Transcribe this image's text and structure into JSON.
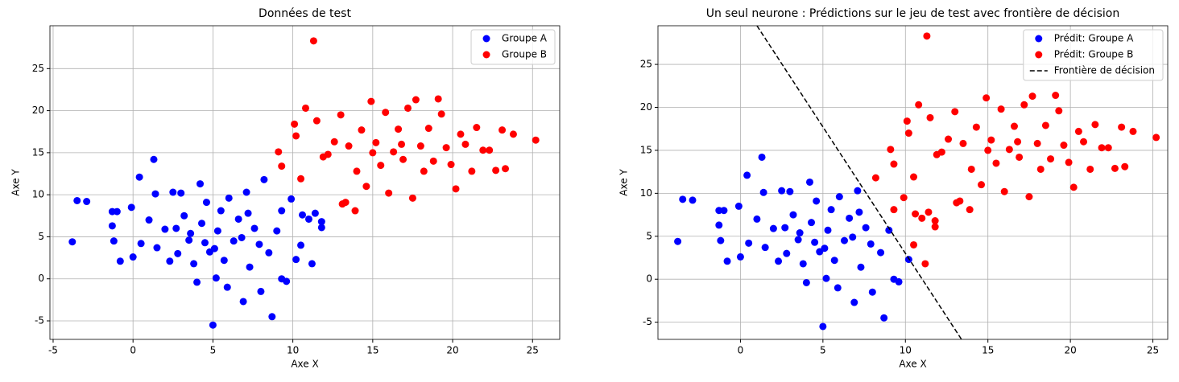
{
  "chart_data": [
    {
      "type": "scatter",
      "title": "Données de test",
      "x_label": "Axe X",
      "y_label": "Axe Y",
      "xlim": [
        -5.2,
        26.7
      ],
      "ylim": [
        -7.2,
        30.1
      ],
      "xticks": [
        -5,
        0,
        5,
        10,
        15,
        20,
        25
      ],
      "yticks": [
        -5,
        0,
        5,
        10,
        15,
        20,
        25
      ],
      "grid": true,
      "legend": "upper right",
      "series": [
        {
          "name": "Groupe A",
          "color": "#0000ff",
          "x": [
            -3.8,
            -3.5,
            -2.9,
            -1.3,
            -1.0,
            -1.3,
            -1.2,
            -0.8,
            -0.1,
            0,
            0.4,
            0.5,
            1.0,
            1.3,
            1.4,
            1.5,
            2.0,
            2.3,
            2.5,
            2.8,
            3.0,
            3.2,
            3.5,
            3.8,
            4.0,
            4.2,
            4.3,
            4.6,
            4.8,
            5.0,
            5.2,
            5.3,
            5.5,
            5.7,
            5.9,
            6.0,
            6.3,
            6.6,
            6.9,
            7.1,
            7.3,
            7.6,
            7.9,
            8.0,
            8.2,
            8.5,
            8.7,
            9.0,
            9.3,
            9.6,
            9.9,
            10.2,
            10.5,
            11.0,
            11.2,
            11.4,
            11.8,
            11.8,
            3.6,
            4.5,
            5.1,
            6.8,
            2.7,
            7.2,
            9.3,
            10.6
          ],
          "values": [
            4.4,
            9.3,
            9.2,
            8.0,
            8.0,
            6.3,
            4.5,
            2.1,
            8.5,
            2.6,
            12.1,
            4.2,
            7.0,
            14.2,
            10.1,
            3.7,
            5.9,
            2.1,
            10.3,
            3.0,
            10.2,
            7.5,
            4.6,
            1.8,
            -0.4,
            11.3,
            6.6,
            9.1,
            3.2,
            -5.5,
            0.1,
            5.7,
            8.1,
            2.2,
            -1.0,
            9.6,
            4.5,
            7.1,
            -2.7,
            10.3,
            1.4,
            6.0,
            4.1,
            -1.5,
            11.8,
            3.1,
            -4.5,
            5.7,
            0.0,
            -0.3,
            9.5,
            2.3,
            4.0,
            7.1,
            1.8,
            7.8,
            6.8,
            6.1,
            5.4,
            4.3,
            3.6,
            4.9,
            6.0,
            7.8,
            8.1,
            7.6
          ]
        },
        {
          "name": "Groupe B",
          "color": "#ff0000",
          "x": [
            9.1,
            9.3,
            10.1,
            10.2,
            10.5,
            10.8,
            11.3,
            11.5,
            11.9,
            12.2,
            12.6,
            13.0,
            13.3,
            13.5,
            13.9,
            14.0,
            14.3,
            14.6,
            14.9,
            15.2,
            15.5,
            15.8,
            16.0,
            16.3,
            16.6,
            16.9,
            17.2,
            17.5,
            17.7,
            18.0,
            18.2,
            18.5,
            18.8,
            19.1,
            19.3,
            19.6,
            19.9,
            20.2,
            20.5,
            20.8,
            21.2,
            21.5,
            21.9,
            22.3,
            22.7,
            23.1,
            23.3,
            23.8,
            25.2,
            13.1,
            15.0,
            16.8
          ],
          "values": [
            15.1,
            13.4,
            18.4,
            17.0,
            11.9,
            20.3,
            28.3,
            18.8,
            14.5,
            14.8,
            16.3,
            19.5,
            9.1,
            15.8,
            8.1,
            12.8,
            17.7,
            11.0,
            21.1,
            16.2,
            13.5,
            19.8,
            10.2,
            15.1,
            17.8,
            14.2,
            20.3,
            9.6,
            21.3,
            15.8,
            12.8,
            17.9,
            14.0,
            21.4,
            19.6,
            15.6,
            13.6,
            10.7,
            17.2,
            16.0,
            12.8,
            18.0,
            15.3,
            15.3,
            12.9,
            17.7,
            13.1,
            17.2,
            16.5,
            8.9,
            15.0,
            16.0
          ]
        }
      ]
    },
    {
      "type": "scatter",
      "title": "Un seul neurone : Prédictions sur le jeu de test avec frontière de décision",
      "x_label": "Axe X",
      "y_label": "Axe Y",
      "xlim": [
        -5.0,
        25.9
      ],
      "ylim": [
        -7.0,
        29.5
      ],
      "xticks": [
        0,
        5,
        10,
        15,
        20,
        25
      ],
      "yticks": [
        -5,
        0,
        5,
        10,
        15,
        20,
        25
      ],
      "grid": true,
      "legend": "upper right",
      "series": [
        {
          "name": "Prédit: Groupe A",
          "color": "#0000ff",
          "x": [
            -3.8,
            -3.5,
            -2.9,
            -1.3,
            -1.0,
            -1.3,
            -1.2,
            -0.8,
            -0.1,
            0,
            0.4,
            0.5,
            1.0,
            1.3,
            1.4,
            1.5,
            2.0,
            2.3,
            2.5,
            2.8,
            3.0,
            3.2,
            3.5,
            3.8,
            4.0,
            4.2,
            4.3,
            4.6,
            4.8,
            5.0,
            5.2,
            5.3,
            5.5,
            5.7,
            5.9,
            6.0,
            6.3,
            6.6,
            6.9,
            7.1,
            7.3,
            7.6,
            7.9,
            8.0,
            8.5,
            8.7,
            9.0,
            9.3,
            9.6,
            10.2,
            3.6,
            4.5,
            5.1,
            6.8,
            2.7,
            7.2
          ],
          "values": [
            4.4,
            9.3,
            9.2,
            8.0,
            8.0,
            6.3,
            4.5,
            2.1,
            8.5,
            2.6,
            12.1,
            4.2,
            7.0,
            14.2,
            10.1,
            3.7,
            5.9,
            2.1,
            10.3,
            3.0,
            10.2,
            7.5,
            4.6,
            1.8,
            -0.4,
            11.3,
            6.6,
            9.1,
            3.2,
            -5.5,
            0.1,
            5.7,
            8.1,
            2.2,
            -1.0,
            9.6,
            4.5,
            7.1,
            -2.7,
            10.3,
            1.4,
            6.0,
            4.1,
            -1.5,
            3.1,
            -4.5,
            5.7,
            0.0,
            -0.3,
            2.3,
            5.4,
            4.3,
            3.6,
            4.9,
            6.0,
            7.8
          ]
        },
        {
          "name": "Prédit: Groupe B",
          "color": "#ff0000",
          "x": [
            8.2,
            9.9,
            10.5,
            11.0,
            11.2,
            11.4,
            11.8,
            11.8,
            9.3,
            10.6,
            9.1,
            9.3,
            10.1,
            10.2,
            10.5,
            10.8,
            11.3,
            11.5,
            11.9,
            12.2,
            12.6,
            13.0,
            13.3,
            13.5,
            13.9,
            14.0,
            14.3,
            14.6,
            14.9,
            15.2,
            15.5,
            15.8,
            16.0,
            16.3,
            16.6,
            16.9,
            17.2,
            17.5,
            17.7,
            18.0,
            18.2,
            18.5,
            18.8,
            19.1,
            19.3,
            19.6,
            19.9,
            20.2,
            20.5,
            20.8,
            21.2,
            21.5,
            21.9,
            22.3,
            22.7,
            23.1,
            23.3,
            23.8,
            25.2,
            13.1,
            15.0,
            16.8
          ],
          "values": [
            11.8,
            9.5,
            4.0,
            7.1,
            1.8,
            7.8,
            6.8,
            6.1,
            8.1,
            7.6,
            15.1,
            13.4,
            18.4,
            17.0,
            11.9,
            20.3,
            28.3,
            18.8,
            14.5,
            14.8,
            16.3,
            19.5,
            9.1,
            15.8,
            8.1,
            12.8,
            17.7,
            11.0,
            21.1,
            16.2,
            13.5,
            19.8,
            10.2,
            15.1,
            17.8,
            14.2,
            20.3,
            9.6,
            21.3,
            15.8,
            12.8,
            17.9,
            14.0,
            21.4,
            19.6,
            15.6,
            13.6,
            10.7,
            17.2,
            16.0,
            12.8,
            18.0,
            15.3,
            15.3,
            12.9,
            17.7,
            13.1,
            17.2,
            16.5,
            8.9,
            15.0,
            16.0
          ]
        },
        {
          "name": "Frontière de décision",
          "type": "line",
          "color": "#000000",
          "dashed": true,
          "x": [
            1.0,
            13.4
          ],
          "values": [
            29.5,
            -7.0
          ]
        }
      ]
    }
  ]
}
